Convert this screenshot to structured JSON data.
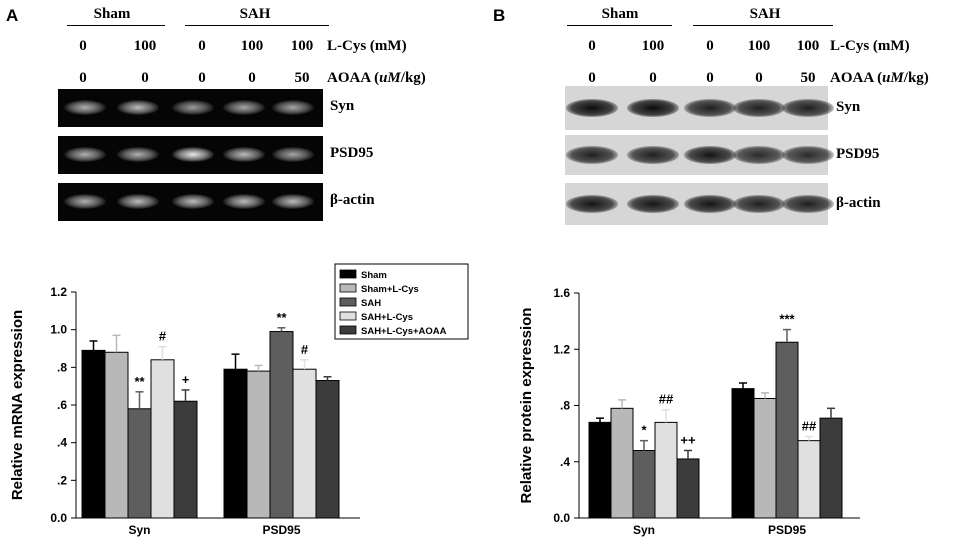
{
  "panel_a": {
    "letter": "A",
    "groups": [
      "Sham",
      "SAH"
    ],
    "lcys_values": [
      "0",
      "100",
      "0",
      "100",
      "100"
    ],
    "lcys_label": "L-Cys (mM)",
    "aoaa_values": [
      "0",
      "0",
      "0",
      "0",
      "50"
    ],
    "aoaa_label_pre": "AOAA (",
    "aoaa_label_it": "uM",
    "aoaa_label_post": "/kg)",
    "blots": [
      "Syn",
      "PSD95",
      "β-actin"
    ],
    "legend": [
      "Sham",
      "Sham+L-Cys",
      "SAH",
      "SAH+L-Cys",
      "SAH+L-Cys+AOAA"
    ]
  },
  "panel_b": {
    "letter": "B",
    "groups": [
      "Sham",
      "SAH"
    ],
    "lcys_values": [
      "0",
      "100",
      "0",
      "100",
      "100"
    ],
    "lcys_label": "L-Cys (mM)",
    "aoaa_values": [
      "0",
      "0",
      "0",
      "0",
      "50"
    ],
    "aoaa_label_pre": "AOAA (",
    "aoaa_label_it": "uM",
    "aoaa_label_post": "/kg)",
    "blots": [
      "Syn",
      "PSD95",
      "β-actin"
    ]
  },
  "chart_data": [
    {
      "type": "bar",
      "categories": [
        "Syn",
        "PSD95"
      ],
      "ylabel": "Relative mRNA expression",
      "ylim": [
        0,
        1.2
      ],
      "yticks": [
        "0.0",
        ".2",
        ".4",
        ".6",
        ".8",
        "1.0",
        "1.2"
      ],
      "series": [
        {
          "name": "Sham",
          "color": "#000000",
          "values": [
            0.89,
            0.79
          ],
          "errors": [
            0.05,
            0.08
          ],
          "annotations": [
            "",
            ""
          ]
        },
        {
          "name": "Sham+L-Cys",
          "color": "#b8b8b8",
          "values": [
            0.88,
            0.78
          ],
          "errors": [
            0.09,
            0.03
          ],
          "annotations": [
            "",
            ""
          ]
        },
        {
          "name": "SAH",
          "color": "#5e5e5e",
          "values": [
            0.58,
            0.99
          ],
          "errors": [
            0.09,
            0.02
          ],
          "annotations": [
            "**",
            "**"
          ]
        },
        {
          "name": "SAH+L-Cys",
          "color": "#e0e0e0",
          "values": [
            0.84,
            0.79
          ],
          "errors": [
            0.07,
            0.05
          ],
          "annotations": [
            "#",
            "#"
          ]
        },
        {
          "name": "SAH+L-Cys+AOAA",
          "color": "#3c3c3c",
          "values": [
            0.62,
            0.73
          ],
          "errors": [
            0.06,
            0.02
          ],
          "annotations": [
            "+",
            ""
          ]
        }
      ],
      "legend_position": "top-center",
      "grid": false
    },
    {
      "type": "bar",
      "categories": [
        "Syn",
        "PSD95"
      ],
      "ylabel": "Relative protein expression",
      "ylim": [
        0,
        1.6
      ],
      "yticks": [
        "0.0",
        ".4",
        ".8",
        "1.2",
        "1.6"
      ],
      "series": [
        {
          "name": "Sham",
          "color": "#000000",
          "values": [
            0.68,
            0.92
          ],
          "errors": [
            0.03,
            0.04
          ],
          "annotations": [
            "",
            ""
          ]
        },
        {
          "name": "Sham+L-Cys",
          "color": "#b8b8b8",
          "values": [
            0.78,
            0.85
          ],
          "errors": [
            0.06,
            0.04
          ],
          "annotations": [
            "",
            ""
          ]
        },
        {
          "name": "SAH",
          "color": "#5e5e5e",
          "values": [
            0.48,
            1.25
          ],
          "errors": [
            0.07,
            0.09
          ],
          "annotations": [
            "*",
            "***"
          ]
        },
        {
          "name": "SAH+L-Cys",
          "color": "#e0e0e0",
          "values": [
            0.68,
            0.55
          ],
          "errors": [
            0.09,
            0.03
          ],
          "annotations": [
            "##",
            "##"
          ]
        },
        {
          "name": "SAH+L-Cys+AOAA",
          "color": "#3c3c3c",
          "values": [
            0.42,
            0.71
          ],
          "errors": [
            0.06,
            0.07
          ],
          "annotations": [
            "++",
            ""
          ]
        }
      ],
      "grid": false
    }
  ]
}
